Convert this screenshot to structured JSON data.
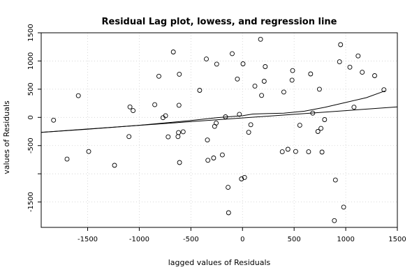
{
  "chart_data": {
    "type": "scatter",
    "title": "Residual Lag plot, lowess, and regression line",
    "xlabel": "lagged values of Residuals",
    "ylabel": "values of Residuals",
    "xlim": [
      -1950,
      1500
    ],
    "ylim": [
      -1950,
      1500
    ],
    "x_ticks": [
      -1500,
      -1000,
      -500,
      0,
      500,
      1000,
      1500
    ],
    "y_ticks": [
      -1500,
      -1000,
      -500,
      0,
      500,
      1000,
      1500
    ],
    "x_tick_labels": [
      "-1500",
      "-1000",
      "-500",
      "0",
      "500",
      "1000",
      "1500"
    ],
    "y_tick_labels": [
      "-1500",
      "",
      "-500",
      "0",
      "500",
      "1000",
      "1500"
    ],
    "grid": true,
    "points": [
      [
        -1830,
        -50
      ],
      [
        -1700,
        -740
      ],
      [
        -1590,
        385
      ],
      [
        -1490,
        -605
      ],
      [
        -1240,
        -850
      ],
      [
        -1100,
        -340
      ],
      [
        -1090,
        185
      ],
      [
        -1060,
        120
      ],
      [
        -850,
        225
      ],
      [
        -810,
        730
      ],
      [
        -770,
        -5
      ],
      [
        -745,
        30
      ],
      [
        -720,
        -345
      ],
      [
        -670,
        1160
      ],
      [
        -625,
        -340
      ],
      [
        -620,
        -270
      ],
      [
        -615,
        215
      ],
      [
        -612,
        765
      ],
      [
        -610,
        -800
      ],
      [
        -575,
        -255
      ],
      [
        -415,
        480
      ],
      [
        -350,
        1035
      ],
      [
        -340,
        -400
      ],
      [
        -335,
        -760
      ],
      [
        -280,
        -720
      ],
      [
        -270,
        -160
      ],
      [
        -255,
        -100
      ],
      [
        -250,
        945
      ],
      [
        -195,
        -665
      ],
      [
        -165,
        10
      ],
      [
        -140,
        -1240
      ],
      [
        -135,
        -1690
      ],
      [
        -100,
        1130
      ],
      [
        -50,
        680
      ],
      [
        -30,
        55
      ],
      [
        -10,
        -1090
      ],
      [
        5,
        950
      ],
      [
        20,
        -1065
      ],
      [
        60,
        -265
      ],
      [
        80,
        -130
      ],
      [
        120,
        555
      ],
      [
        175,
        1385
      ],
      [
        185,
        390
      ],
      [
        210,
        640
      ],
      [
        220,
        900
      ],
      [
        385,
        -610
      ],
      [
        400,
        450
      ],
      [
        440,
        -565
      ],
      [
        480,
        660
      ],
      [
        485,
        830
      ],
      [
        515,
        -605
      ],
      [
        555,
        -140
      ],
      [
        640,
        -610
      ],
      [
        660,
        770
      ],
      [
        680,
        75
      ],
      [
        730,
        -250
      ],
      [
        745,
        500
      ],
      [
        760,
        -195
      ],
      [
        770,
        -615
      ],
      [
        795,
        -40
      ],
      [
        890,
        -1830
      ],
      [
        900,
        -1110
      ],
      [
        940,
        985
      ],
      [
        950,
        1290
      ],
      [
        980,
        -1590
      ],
      [
        1040,
        890
      ],
      [
        1080,
        180
      ],
      [
        1120,
        1090
      ],
      [
        1160,
        800
      ],
      [
        1280,
        740
      ],
      [
        1370,
        490
      ]
    ],
    "series": [
      {
        "name": "",
        "type": "lowess",
        "x": [
          -1950,
          -1500,
          -1000,
          -500,
          -250,
          0,
          100,
          200,
          400,
          600,
          800,
          1000,
          1200,
          1380
        ],
        "y": [
          -265,
          -210,
          -140,
          -55,
          -5,
          30,
          60,
          65,
          75,
          110,
          180,
          265,
          350,
          470
        ]
      },
      {
        "name": "",
        "type": "regression",
        "x": [
          -1950,
          1500
        ],
        "y": [
          -265,
          185
        ]
      }
    ]
  }
}
